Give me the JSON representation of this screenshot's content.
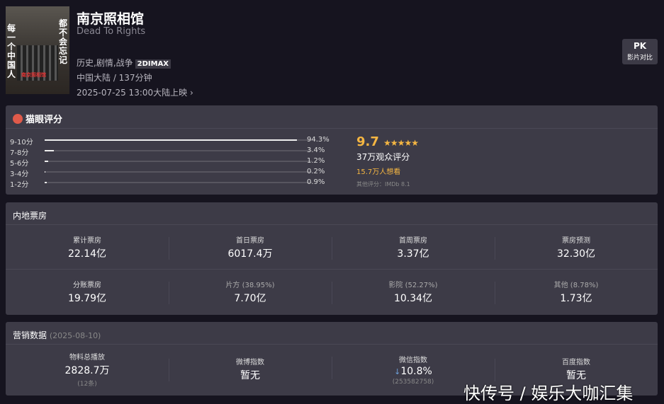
{
  "movie": {
    "title": "南京照相馆",
    "en_title": "Dead To Rights",
    "genres": "历史,剧情,战争",
    "format": "2DIMAX",
    "region_duration": "中国大陆 / 137分钟",
    "release": "2025-07-25 13:00大陆上映 ›",
    "poster": {
      "left_text": "每一个中国人",
      "right_text": "都不会忘记",
      "title_text": "南京照相馆"
    }
  },
  "pk": {
    "label": "PK",
    "sub": "影片对比"
  },
  "rating": {
    "header": "猫眼评分",
    "score": "9.7",
    "stars": "★★★★★",
    "count": "37万观众评分",
    "want": "15.7万人想看",
    "other": "其他评分：IMDb 8.1",
    "dist": [
      {
        "label": "9-10分",
        "pct": "94.3%",
        "value": 94.3
      },
      {
        "label": "7-8分",
        "pct": "3.4%",
        "value": 3.4
      },
      {
        "label": "5-6分",
        "pct": "1.2%",
        "value": 1.2
      },
      {
        "label": "3-4分",
        "pct": "0.2%",
        "value": 0.2
      },
      {
        "label": "1-2分",
        "pct": "0.9%",
        "value": 0.9
      }
    ]
  },
  "box_office": {
    "header": "内地票房",
    "row1": [
      {
        "k": "累计票房",
        "v": "22.14亿"
      },
      {
        "k": "首日票房",
        "v": "6017.4万"
      },
      {
        "k": "首周票房",
        "v": "3.37亿"
      },
      {
        "k": "票房预测",
        "v": "32.30亿"
      }
    ],
    "row2": [
      {
        "k": "分账票房",
        "v": "19.79亿"
      },
      {
        "k": "片方 (38.95%)",
        "v": "7.70亿"
      },
      {
        "k": "影院 (52.27%)",
        "v": "10.34亿"
      },
      {
        "k": "其他 (8.78%)",
        "v": "1.73亿"
      }
    ]
  },
  "marketing": {
    "header": "营销数据",
    "date": "(2025-08-10)",
    "items": [
      {
        "k": "物料总播放",
        "v": "2828.7万",
        "n": "(12条)"
      },
      {
        "k": "微博指数",
        "v": "暂无",
        "n": ""
      },
      {
        "k": "微信指数",
        "v": "10.8%",
        "arrow": "↓",
        "n": "(253582758)"
      },
      {
        "k": "百度指数",
        "v": "暂无",
        "n": ""
      }
    ]
  },
  "watermark": "快传号 / 娱乐大咖汇集",
  "colors": {
    "accent": "#f5b642",
    "card": "#3d3b47",
    "bg": "#16141f"
  }
}
